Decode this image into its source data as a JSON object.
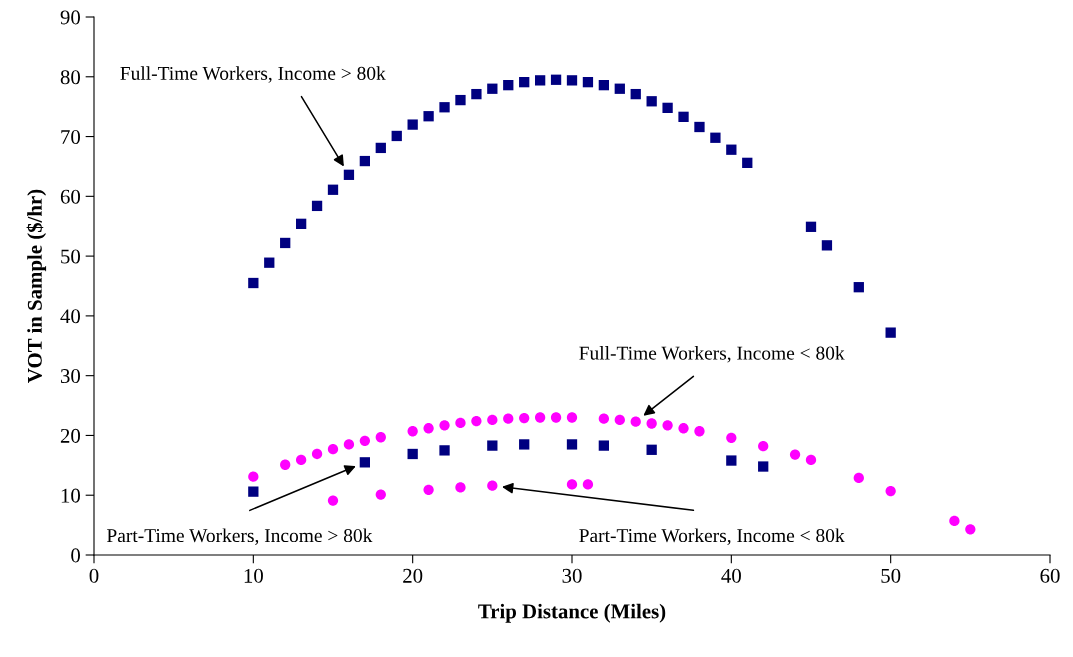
{
  "chart_data": {
    "type": "scatter",
    "xlabel": "Trip Distance (Miles)",
    "ylabel": "VOT in Sample ($/hr)",
    "xlim": [
      0,
      60
    ],
    "xticks": [
      0,
      10,
      20,
      30,
      40,
      50,
      60
    ],
    "ylim": [
      0,
      90
    ],
    "yticks": [
      0,
      10,
      20,
      30,
      40,
      50,
      60,
      70,
      80,
      90
    ],
    "grid": false,
    "legend": false,
    "series": [
      {
        "name": "Full-Time Workers, Income > 80k",
        "color": "#000080",
        "marker": "square",
        "x": [
          10,
          11,
          12,
          13,
          14,
          15,
          16,
          17,
          18,
          19,
          20,
          21,
          22,
          23,
          24,
          25,
          26,
          27,
          28,
          29,
          30,
          31,
          32,
          33,
          34,
          35,
          36,
          37,
          38,
          39,
          40,
          41,
          45,
          46,
          48,
          50
        ],
        "values": [
          45.5,
          48.9,
          52.2,
          55.4,
          58.4,
          61.1,
          63.6,
          65.9,
          68.1,
          70.1,
          72.0,
          73.4,
          74.9,
          76.1,
          77.1,
          78.0,
          78.6,
          79.1,
          79.4,
          79.5,
          79.4,
          79.1,
          78.6,
          78.0,
          77.1,
          75.9,
          74.8,
          73.3,
          71.6,
          69.8,
          67.8,
          65.6,
          54.9,
          51.8,
          44.8,
          37.2
        ]
      },
      {
        "name": "Full-Time Workers, Income < 80k",
        "color": "#ff00ff",
        "marker": "circle",
        "x": [
          10,
          12,
          13,
          14,
          15,
          16,
          17,
          18,
          20,
          21,
          22,
          23,
          24,
          25,
          26,
          27,
          28,
          29,
          30,
          32,
          33,
          34,
          35,
          36,
          37,
          38,
          40,
          42,
          44,
          45,
          48,
          50,
          54,
          55
        ],
        "values": [
          13.1,
          15.1,
          15.9,
          16.9,
          17.7,
          18.5,
          19.1,
          19.7,
          20.7,
          21.2,
          21.7,
          22.1,
          22.4,
          22.6,
          22.8,
          22.9,
          23.0,
          23.0,
          23.0,
          22.8,
          22.6,
          22.3,
          22.0,
          21.7,
          21.2,
          20.7,
          19.6,
          18.2,
          16.8,
          15.9,
          12.9,
          10.7,
          5.7,
          4.3
        ]
      },
      {
        "name": "Part-Time Workers, Income > 80k",
        "color": "#000080",
        "marker": "square",
        "x": [
          10,
          17,
          20,
          22,
          25,
          27,
          30,
          32,
          35,
          40,
          42
        ],
        "values": [
          10.6,
          15.5,
          16.9,
          17.5,
          18.3,
          18.5,
          18.5,
          18.3,
          17.6,
          15.8,
          14.8
        ]
      },
      {
        "name": "Part-Time Workers, Income < 80k",
        "color": "#ff00ff",
        "marker": "circle",
        "x": [
          15,
          18,
          21,
          23,
          25,
          30,
          31
        ],
        "values": [
          9.1,
          10.1,
          10.9,
          11.3,
          11.6,
          11.8,
          11.8
        ]
      }
    ]
  }
}
